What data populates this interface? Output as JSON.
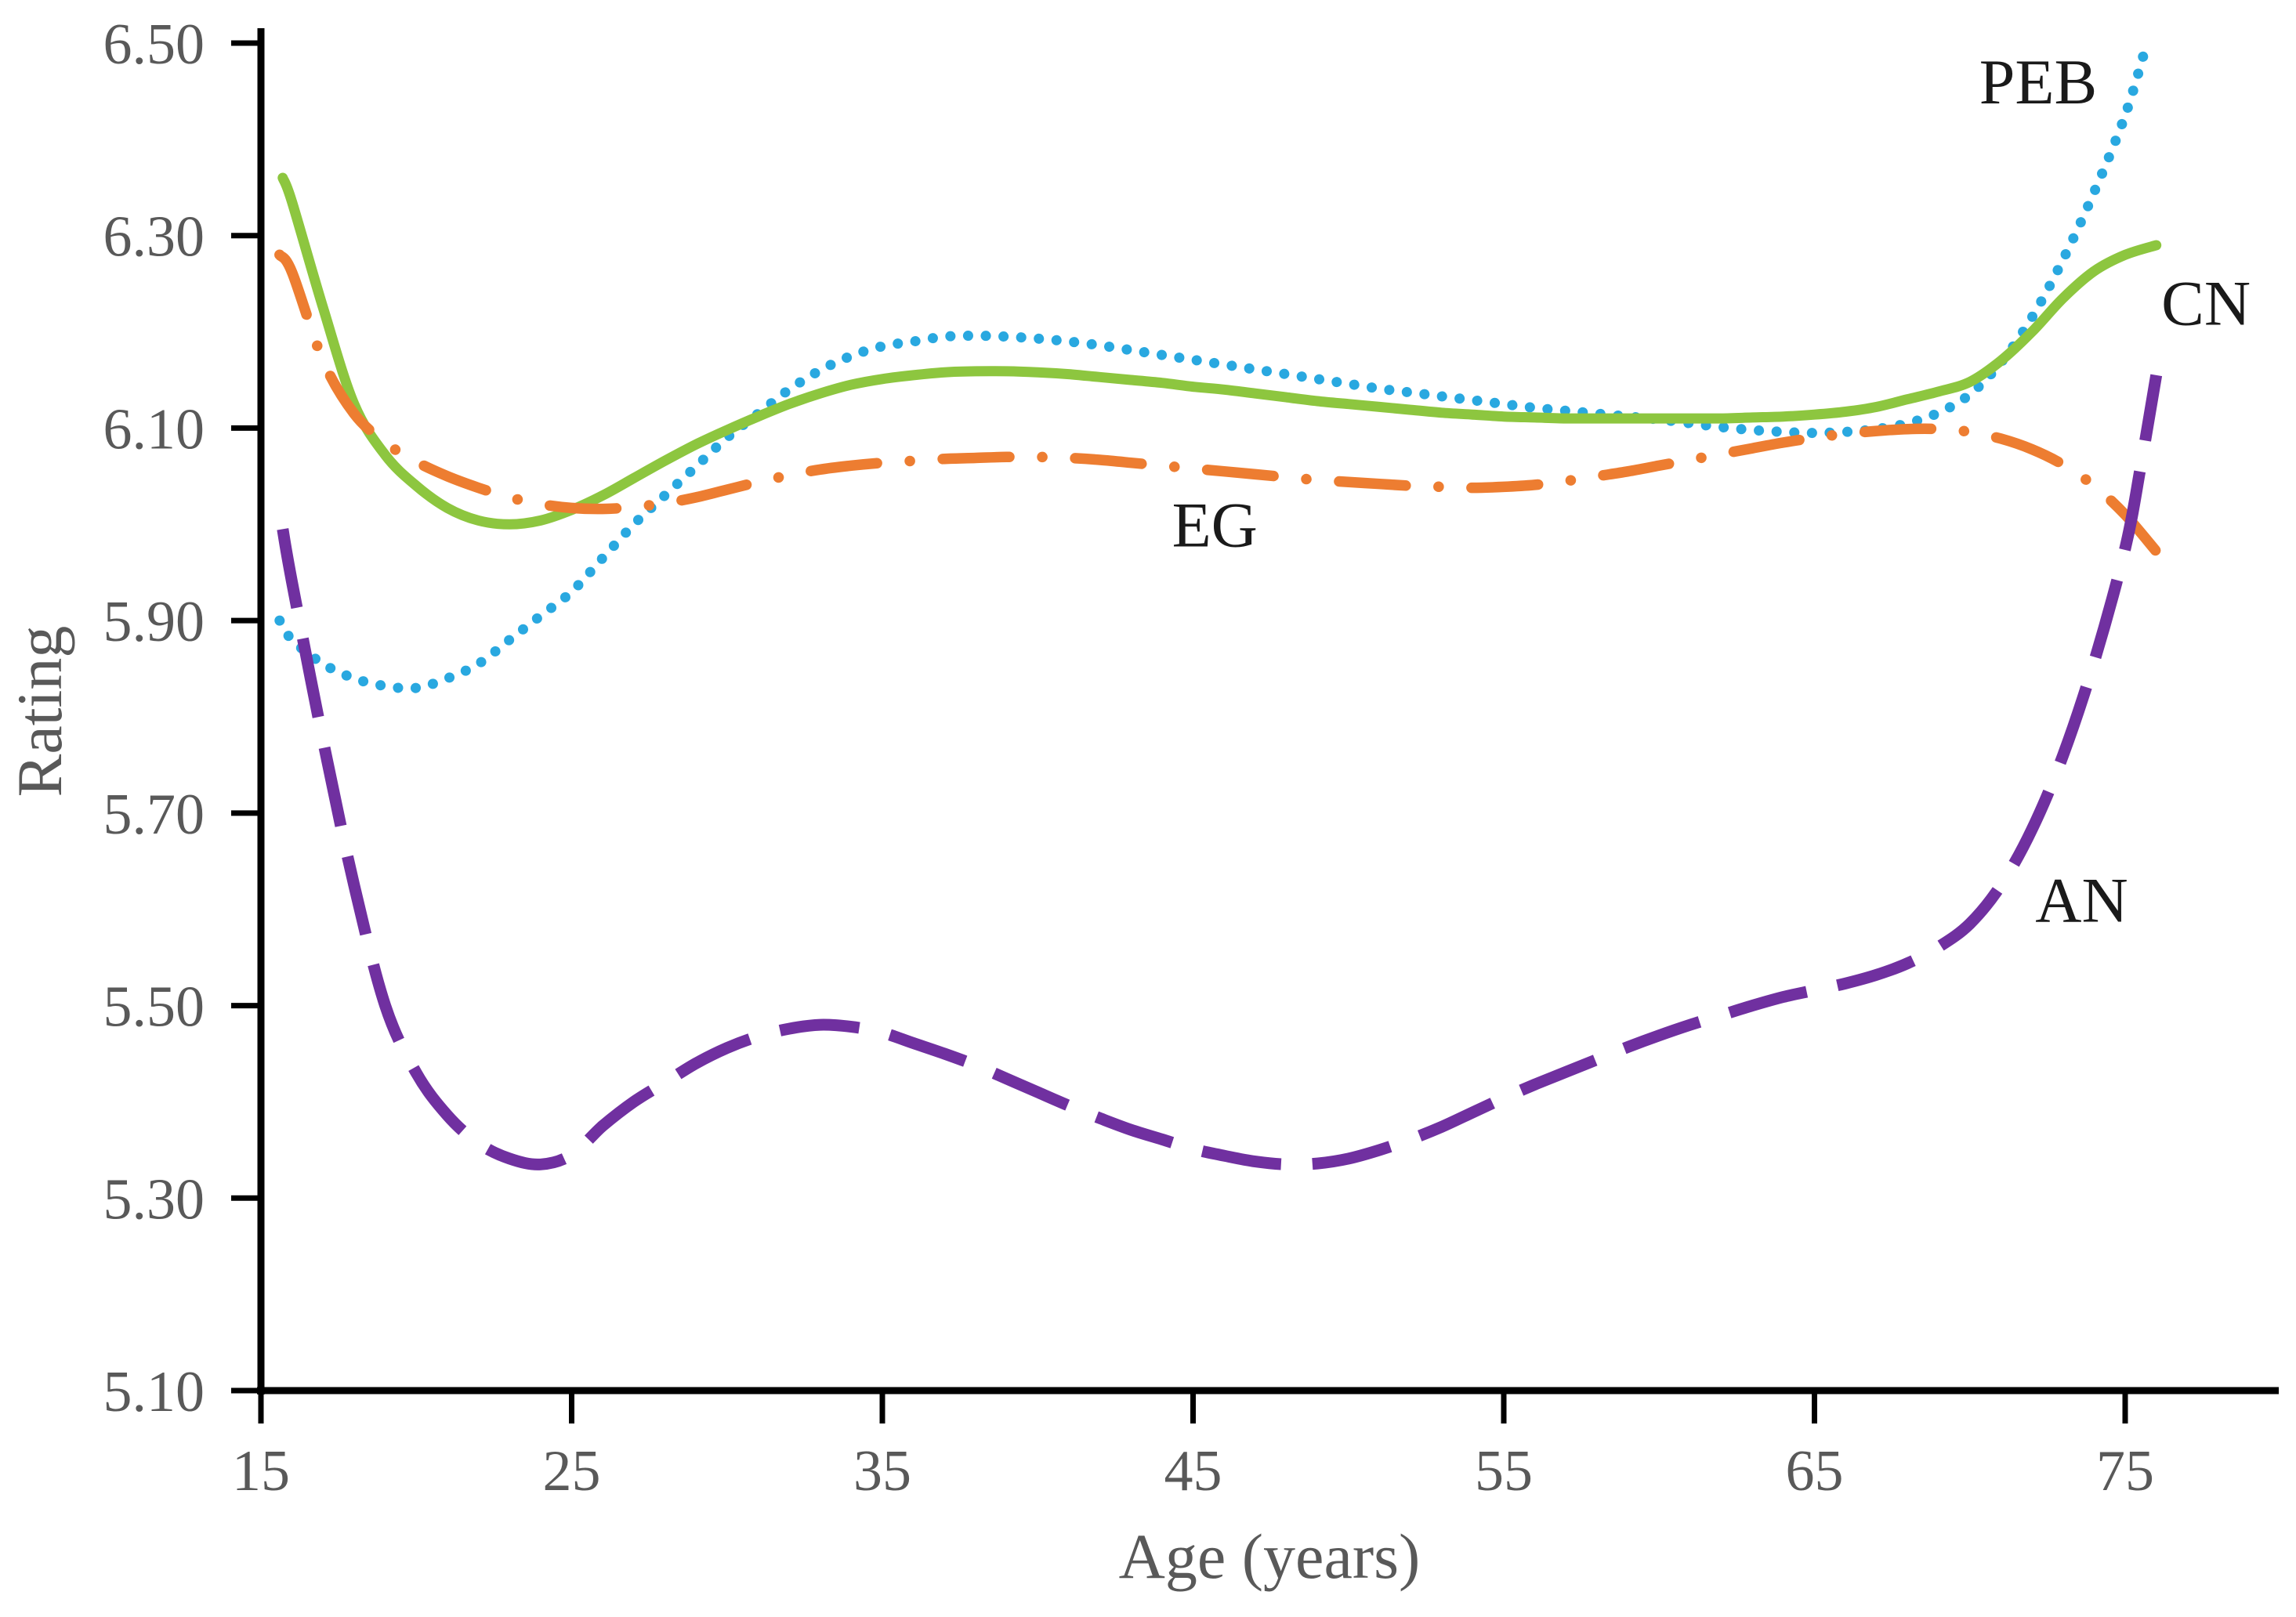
{
  "chart_data": {
    "type": "line",
    "title": "",
    "xlabel": "Age (years)",
    "ylabel": "Rating",
    "xlim": [
      15,
      80
    ],
    "ylim": [
      5.1,
      6.5
    ],
    "grid": false,
    "legend_position": "inline-labels",
    "x_ticks": [
      {
        "value": 15,
        "label": "15"
      },
      {
        "value": 25,
        "label": "25"
      },
      {
        "value": 35,
        "label": "35"
      },
      {
        "value": 45,
        "label": "45"
      },
      {
        "value": 55,
        "label": "55"
      },
      {
        "value": 65,
        "label": "65"
      },
      {
        "value": 75,
        "label": "75"
      }
    ],
    "y_ticks": [
      {
        "value": 5.1,
        "label": "5.10"
      },
      {
        "value": 5.3,
        "label": "5.30"
      },
      {
        "value": 5.5,
        "label": "5.50"
      },
      {
        "value": 5.7,
        "label": "5.70"
      },
      {
        "value": 5.9,
        "label": "5.90"
      },
      {
        "value": 6.1,
        "label": "6.10"
      },
      {
        "value": 6.3,
        "label": "6.30"
      },
      {
        "value": 6.5,
        "label": "6.50"
      }
    ],
    "series": [
      {
        "name": "PEB",
        "color": "#29a8e0",
        "line_style": "dotted",
        "label_pos": {
          "age": 72.2,
          "rating": 6.46
        },
        "points": [
          [
            15.6,
            5.9
          ],
          [
            16,
            5.88
          ],
          [
            17,
            5.855
          ],
          [
            18,
            5.84
          ],
          [
            19,
            5.832
          ],
          [
            20,
            5.83
          ],
          [
            21,
            5.84
          ],
          [
            22,
            5.855
          ],
          [
            23,
            5.88
          ],
          [
            24,
            5.905
          ],
          [
            25,
            5.93
          ],
          [
            26,
            5.965
          ],
          [
            27,
            6.0
          ],
          [
            28,
            6.03
          ],
          [
            29,
            6.06
          ],
          [
            30,
            6.09
          ],
          [
            31,
            6.115
          ],
          [
            32,
            6.14
          ],
          [
            33,
            6.16
          ],
          [
            34,
            6.175
          ],
          [
            35,
            6.185
          ],
          [
            36,
            6.19
          ],
          [
            37,
            6.195
          ],
          [
            38,
            6.196
          ],
          [
            39,
            6.195
          ],
          [
            40,
            6.193
          ],
          [
            41,
            6.19
          ],
          [
            42,
            6.186
          ],
          [
            43,
            6.181
          ],
          [
            44,
            6.176
          ],
          [
            45,
            6.171
          ],
          [
            46,
            6.166
          ],
          [
            47,
            6.161
          ],
          [
            48,
            6.156
          ],
          [
            49,
            6.151
          ],
          [
            50,
            6.146
          ],
          [
            51,
            6.141
          ],
          [
            52,
            6.137
          ],
          [
            53,
            6.133
          ],
          [
            54,
            6.129
          ],
          [
            55,
            6.125
          ],
          [
            56,
            6.121
          ],
          [
            57,
            6.118
          ],
          [
            58,
            6.115
          ],
          [
            59,
            6.112
          ],
          [
            60,
            6.109
          ],
          [
            61,
            6.105
          ],
          [
            62,
            6.101
          ],
          [
            63,
            6.098
          ],
          [
            64,
            6.096
          ],
          [
            65,
            6.095
          ],
          [
            66,
            6.096
          ],
          [
            67,
            6.099
          ],
          [
            68,
            6.105
          ],
          [
            69,
            6.116
          ],
          [
            70,
            6.135
          ],
          [
            71,
            6.168
          ],
          [
            72,
            6.215
          ],
          [
            73,
            6.275
          ],
          [
            74,
            6.345
          ],
          [
            75,
            6.425
          ],
          [
            75.7,
            6.5
          ]
        ]
      },
      {
        "name": "CN",
        "color": "#8dc63f",
        "line_style": "solid",
        "label_pos": {
          "age": 77.6,
          "rating": 6.23
        },
        "points": [
          [
            15.7,
            6.36
          ],
          [
            16,
            6.335
          ],
          [
            17,
            6.225
          ],
          [
            18,
            6.125
          ],
          [
            19,
            6.072
          ],
          [
            20,
            6.04
          ],
          [
            21,
            6.017
          ],
          [
            22,
            6.004
          ],
          [
            23,
            6.0
          ],
          [
            24,
            6.004
          ],
          [
            25,
            6.015
          ],
          [
            26,
            6.03
          ],
          [
            27,
            6.048
          ],
          [
            28,
            6.066
          ],
          [
            29,
            6.083
          ],
          [
            30,
            6.098
          ],
          [
            31,
            6.112
          ],
          [
            32,
            6.125
          ],
          [
            33,
            6.136
          ],
          [
            34,
            6.145
          ],
          [
            35,
            6.151
          ],
          [
            36,
            6.155
          ],
          [
            37,
            6.158
          ],
          [
            38,
            6.159
          ],
          [
            39,
            6.159
          ],
          [
            40,
            6.158
          ],
          [
            41,
            6.156
          ],
          [
            42,
            6.153
          ],
          [
            43,
            6.15
          ],
          [
            44,
            6.147
          ],
          [
            45,
            6.143
          ],
          [
            46,
            6.14
          ],
          [
            47,
            6.136
          ],
          [
            48,
            6.132
          ],
          [
            49,
            6.128
          ],
          [
            50,
            6.125
          ],
          [
            51,
            6.122
          ],
          [
            52,
            6.119
          ],
          [
            53,
            6.116
          ],
          [
            54,
            6.114
          ],
          [
            55,
            6.112
          ],
          [
            56,
            6.111
          ],
          [
            57,
            6.11
          ],
          [
            58,
            6.11
          ],
          [
            59,
            6.11
          ],
          [
            60,
            6.11
          ],
          [
            61,
            6.11
          ],
          [
            62,
            6.11
          ],
          [
            63,
            6.111
          ],
          [
            64,
            6.112
          ],
          [
            65,
            6.114
          ],
          [
            66,
            6.117
          ],
          [
            67,
            6.122
          ],
          [
            68,
            6.13
          ],
          [
            69,
            6.138
          ],
          [
            70,
            6.148
          ],
          [
            71,
            6.17
          ],
          [
            72,
            6.2
          ],
          [
            73,
            6.235
          ],
          [
            74,
            6.263
          ],
          [
            75,
            6.28
          ],
          [
            76,
            6.29
          ]
        ]
      },
      {
        "name": "EG",
        "color": "#ed7d31",
        "line_style": "dash-dot",
        "label_pos": {
          "age": 45.7,
          "rating": 6.0
        },
        "points": [
          [
            15.6,
            6.28
          ],
          [
            16,
            6.262
          ],
          [
            17,
            6.17
          ],
          [
            18,
            6.115
          ],
          [
            19,
            6.085
          ],
          [
            20,
            6.065
          ],
          [
            21,
            6.05
          ],
          [
            22,
            6.038
          ],
          [
            23,
            6.028
          ],
          [
            24,
            6.021
          ],
          [
            25,
            6.017
          ],
          [
            26,
            6.016
          ],
          [
            27,
            6.018
          ],
          [
            28,
            6.022
          ],
          [
            29,
            6.028
          ],
          [
            30,
            6.036
          ],
          [
            31,
            6.044
          ],
          [
            32,
            6.051
          ],
          [
            33,
            6.057
          ],
          [
            34,
            6.061
          ],
          [
            35,
            6.064
          ],
          [
            36,
            6.066
          ],
          [
            37,
            6.068
          ],
          [
            38,
            6.069
          ],
          [
            39,
            6.07
          ],
          [
            40,
            6.07
          ],
          [
            41,
            6.069
          ],
          [
            42,
            6.067
          ],
          [
            43,
            6.064
          ],
          [
            44,
            6.061
          ],
          [
            45,
            6.058
          ],
          [
            46,
            6.055
          ],
          [
            47,
            6.052
          ],
          [
            48,
            6.049
          ],
          [
            49,
            6.046
          ],
          [
            50,
            6.044
          ],
          [
            51,
            6.042
          ],
          [
            52,
            6.04
          ],
          [
            53,
            6.039
          ],
          [
            54,
            6.038
          ],
          [
            55,
            6.039
          ],
          [
            56,
            6.041
          ],
          [
            57,
            6.045
          ],
          [
            58,
            6.05
          ],
          [
            59,
            6.055
          ],
          [
            60,
            6.061
          ],
          [
            61,
            6.067
          ],
          [
            62,
            6.073
          ],
          [
            63,
            6.079
          ],
          [
            64,
            6.085
          ],
          [
            65,
            6.09
          ],
          [
            66,
            6.094
          ],
          [
            67,
            6.097
          ],
          [
            68,
            6.099
          ],
          [
            69,
            6.099
          ],
          [
            70,
            6.096
          ],
          [
            71,
            6.089
          ],
          [
            72,
            6.078
          ],
          [
            73,
            6.062
          ],
          [
            74,
            6.04
          ],
          [
            75,
            6.01
          ],
          [
            76,
            5.972
          ]
        ]
      },
      {
        "name": "AN",
        "color": "#7030a0",
        "line_style": "dashed",
        "label_pos": {
          "age": 73.6,
          "rating": 5.61
        },
        "points": [
          [
            15.7,
            5.995
          ],
          [
            16,
            5.94
          ],
          [
            17,
            5.775
          ],
          [
            18,
            5.625
          ],
          [
            19,
            5.5
          ],
          [
            20,
            5.43
          ],
          [
            21,
            5.386
          ],
          [
            22,
            5.357
          ],
          [
            23,
            5.341
          ],
          [
            24,
            5.335
          ],
          [
            25,
            5.345
          ],
          [
            26,
            5.375
          ],
          [
            27,
            5.4
          ],
          [
            28,
            5.42
          ],
          [
            29,
            5.44
          ],
          [
            30,
            5.456
          ],
          [
            31,
            5.468
          ],
          [
            32,
            5.476
          ],
          [
            33,
            5.48
          ],
          [
            34,
            5.478
          ],
          [
            35,
            5.472
          ],
          [
            36,
            5.461
          ],
          [
            37,
            5.45
          ],
          [
            38,
            5.438
          ],
          [
            39,
            5.424
          ],
          [
            40,
            5.41
          ],
          [
            41,
            5.396
          ],
          [
            42,
            5.383
          ],
          [
            43,
            5.371
          ],
          [
            44,
            5.361
          ],
          [
            45,
            5.351
          ],
          [
            46,
            5.344
          ],
          [
            47,
            5.338
          ],
          [
            48,
            5.335
          ],
          [
            49,
            5.336
          ],
          [
            50,
            5.341
          ],
          [
            51,
            5.35
          ],
          [
            52,
            5.361
          ],
          [
            53,
            5.374
          ],
          [
            54,
            5.389
          ],
          [
            55,
            5.404
          ],
          [
            56,
            5.418
          ],
          [
            57,
            5.431
          ],
          [
            58,
            5.444
          ],
          [
            59,
            5.457
          ],
          [
            60,
            5.469
          ],
          [
            61,
            5.48
          ],
          [
            62,
            5.49
          ],
          [
            63,
            5.5
          ],
          [
            64,
            5.509
          ],
          [
            65,
            5.516
          ],
          [
            66,
            5.523
          ],
          [
            67,
            5.532
          ],
          [
            68,
            5.544
          ],
          [
            69,
            5.561
          ],
          [
            70,
            5.585
          ],
          [
            71,
            5.625
          ],
          [
            72,
            5.683
          ],
          [
            73,
            5.76
          ],
          [
            74,
            5.857
          ],
          [
            75,
            5.975
          ],
          [
            75.5,
            6.06
          ],
          [
            76,
            6.155
          ]
        ]
      }
    ]
  }
}
